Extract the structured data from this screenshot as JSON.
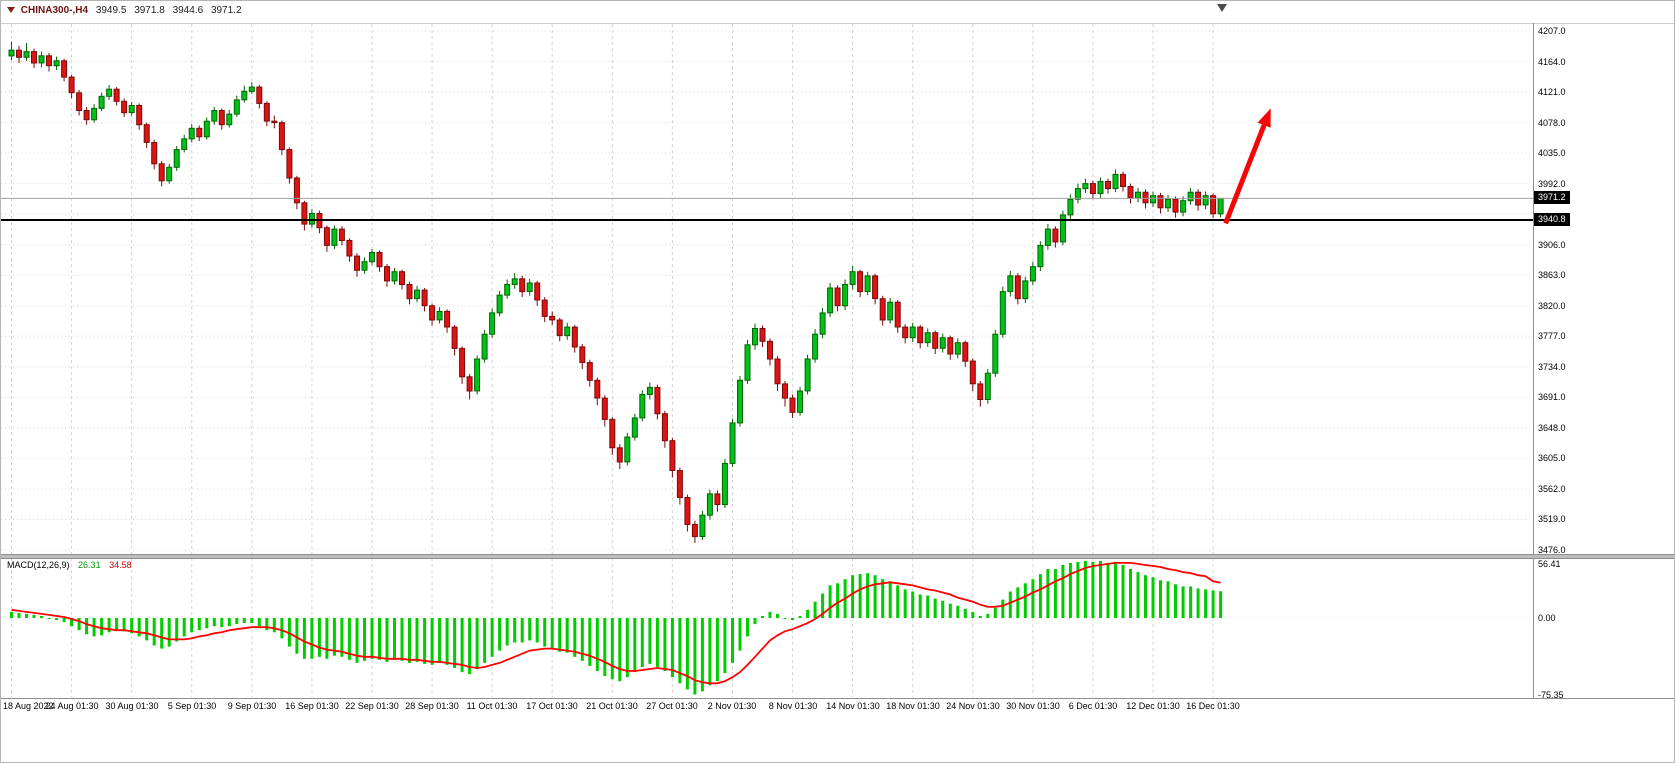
{
  "header": {
    "symbol": "CHINA300-,H4",
    "open": "3949.5",
    "high": "3971.8",
    "low": "3944.6",
    "close": "3971.2"
  },
  "price_tags": {
    "current": "3971.2",
    "hline": "3940.8"
  },
  "macd_panel": {
    "label": "MACD(12,26,9)",
    "main_value": "26.31",
    "signal_value": "34.58"
  },
  "colors": {
    "up_fill": "#00c11b",
    "up_stroke": "#006400",
    "down_fill": "#dc1414",
    "down_stroke": "#7a0a0a",
    "grid": "#d4d4d4",
    "bid_line": "#a0a0a0",
    "hline": "#000000",
    "arrow": "#f40606",
    "macd_hist": "#00cc00",
    "macd_signal": "#ff0000",
    "tag_bg": "#000000",
    "tag_text": "#ffffff"
  },
  "chart_data": {
    "type": "candlestick",
    "symbol": "CHINA300-",
    "timeframe": "H4",
    "title": "CHINA300-,H4 3949.5 3971.8 3944.6 3971.2",
    "current_price": 3971.2,
    "horizontal_line_price": 3940.8,
    "last_candle": {
      "open": 3949.5,
      "high": 3971.8,
      "low": 3944.6,
      "close": 3971.2
    },
    "trend_arrow": {
      "from_index": 162,
      "from_price": 3936,
      "to_index": 168,
      "to_price": 4098
    },
    "price_axis": {
      "max_price": 4207,
      "min_price": 3476,
      "step": 43,
      "labels": [
        "4207.0",
        "4164.0",
        "4121.0",
        "4078.0",
        "4035.0",
        "3992.0",
        "3906.0",
        "3863.0",
        "3820.0",
        "3777.0",
        "3734.0",
        "3691.0",
        "3648.0",
        "3605.0",
        "3562.0",
        "3519.0",
        "3476.0"
      ]
    },
    "time_axis": {
      "labels": [
        "18 Aug 2022",
        "24 Aug 01:30",
        "30 Aug 01:30",
        "5 Sep 01:30",
        "9 Sep 01:30",
        "16 Sep 01:30",
        "22 Sep 01:30",
        "28 Sep 01:30",
        "11 Oct 01:30",
        "17 Oct 01:30",
        "21 Oct 01:30",
        "27 Oct 01:30",
        "2 Nov 01:30",
        "8 Nov 01:30",
        "14 Nov 01:30",
        "18 Nov 01:30",
        "24 Nov 01:30",
        "30 Nov 01:30",
        "6 Dec 01:30",
        "12 Dec 01:30",
        "16 Dec 01:30"
      ]
    },
    "candles": [
      [
        4172,
        4192,
        4166,
        4180
      ],
      [
        4180,
        4186,
        4162,
        4170
      ],
      [
        4170,
        4190,
        4165,
        4178
      ],
      [
        4178,
        4182,
        4155,
        4162
      ],
      [
        4162,
        4178,
        4156,
        4172
      ],
      [
        4172,
        4176,
        4150,
        4158
      ],
      [
        4158,
        4171,
        4152,
        4165
      ],
      [
        4165,
        4168,
        4136,
        4142
      ],
      [
        4142,
        4145,
        4112,
        4120
      ],
      [
        4120,
        4124,
        4088,
        4095
      ],
      [
        4095,
        4100,
        4075,
        4082
      ],
      [
        4082,
        4104,
        4078,
        4098
      ],
      [
        4098,
        4120,
        4094,
        4115
      ],
      [
        4115,
        4131,
        4110,
        4125
      ],
      [
        4125,
        4128,
        4102,
        4108
      ],
      [
        4108,
        4112,
        4086,
        4092
      ],
      [
        4092,
        4107,
        4088,
        4102
      ],
      [
        4102,
        4105,
        4068,
        4075
      ],
      [
        4075,
        4078,
        4042,
        4050
      ],
      [
        4050,
        4054,
        4012,
        4020
      ],
      [
        4020,
        4024,
        3988,
        3996
      ],
      [
        3996,
        4020,
        3992,
        4015
      ],
      [
        4015,
        4045,
        4010,
        4040
      ],
      [
        4040,
        4061,
        4036,
        4055
      ],
      [
        4055,
        4076,
        4050,
        4070
      ],
      [
        4070,
        4074,
        4052,
        4058
      ],
      [
        4058,
        4085,
        4054,
        4080
      ],
      [
        4080,
        4100,
        4075,
        4095
      ],
      [
        4095,
        4098,
        4068,
        4075
      ],
      [
        4075,
        4096,
        4071,
        4090
      ],
      [
        4090,
        4116,
        4086,
        4110
      ],
      [
        4110,
        4130,
        4106,
        4122
      ],
      [
        4122,
        4135,
        4118,
        4128
      ],
      [
        4128,
        4131,
        4098,
        4105
      ],
      [
        4105,
        4108,
        4073,
        4080
      ],
      [
        4080,
        4088,
        4070,
        4078
      ],
      [
        4078,
        4081,
        4032,
        4040
      ],
      [
        4040,
        4043,
        3992,
        4000
      ],
      [
        4000,
        4003,
        3956,
        3965
      ],
      [
        3965,
        3968,
        3926,
        3935
      ],
      [
        3935,
        3956,
        3930,
        3950
      ],
      [
        3950,
        3954,
        3922,
        3930
      ],
      [
        3930,
        3933,
        3896,
        3905
      ],
      [
        3905,
        3933,
        3900,
        3928
      ],
      [
        3928,
        3932,
        3905,
        3912
      ],
      [
        3912,
        3915,
        3882,
        3890
      ],
      [
        3890,
        3894,
        3861,
        3870
      ],
      [
        3870,
        3888,
        3865,
        3882
      ],
      [
        3882,
        3900,
        3877,
        3895
      ],
      [
        3895,
        3898,
        3868,
        3875
      ],
      [
        3875,
        3879,
        3847,
        3855
      ],
      [
        3855,
        3873,
        3850,
        3868
      ],
      [
        3868,
        3871,
        3843,
        3850
      ],
      [
        3850,
        3854,
        3822,
        3830
      ],
      [
        3830,
        3848,
        3825,
        3842
      ],
      [
        3842,
        3845,
        3812,
        3820
      ],
      [
        3820,
        3823,
        3792,
        3800
      ],
      [
        3800,
        3818,
        3795,
        3812
      ],
      [
        3812,
        3815,
        3782,
        3790
      ],
      [
        3790,
        3793,
        3750,
        3760
      ],
      [
        3760,
        3763,
        3710,
        3720
      ],
      [
        3720,
        3724,
        3688,
        3700
      ],
      [
        3700,
        3750,
        3695,
        3745
      ],
      [
        3745,
        3786,
        3740,
        3780
      ],
      [
        3780,
        3816,
        3775,
        3810
      ],
      [
        3810,
        3841,
        3805,
        3835
      ],
      [
        3835,
        3857,
        3830,
        3850
      ],
      [
        3850,
        3866,
        3844,
        3858
      ],
      [
        3858,
        3862,
        3832,
        3840
      ],
      [
        3840,
        3858,
        3834,
        3852
      ],
      [
        3852,
        3855,
        3820,
        3828
      ],
      [
        3828,
        3832,
        3797,
        3805
      ],
      [
        3805,
        3812,
        3793,
        3800
      ],
      [
        3800,
        3803,
        3770,
        3778
      ],
      [
        3778,
        3796,
        3772,
        3790
      ],
      [
        3790,
        3793,
        3754,
        3762
      ],
      [
        3762,
        3766,
        3731,
        3740
      ],
      [
        3740,
        3744,
        3706,
        3715
      ],
      [
        3715,
        3719,
        3680,
        3690
      ],
      [
        3690,
        3694,
        3650,
        3660
      ],
      [
        3660,
        3663,
        3610,
        3620
      ],
      [
        3620,
        3625,
        3590,
        3600
      ],
      [
        3600,
        3641,
        3595,
        3635
      ],
      [
        3635,
        3668,
        3630,
        3662
      ],
      [
        3662,
        3701,
        3657,
        3695
      ],
      [
        3695,
        3712,
        3688,
        3705
      ],
      [
        3705,
        3709,
        3660,
        3668
      ],
      [
        3668,
        3672,
        3620,
        3630
      ],
      [
        3630,
        3634,
        3578,
        3588
      ],
      [
        3588,
        3592,
        3540,
        3550
      ],
      [
        3550,
        3554,
        3502,
        3512
      ],
      [
        3512,
        3517,
        3486,
        3495
      ],
      [
        3495,
        3531,
        3490,
        3525
      ],
      [
        3525,
        3561,
        3519,
        3555
      ],
      [
        3555,
        3560,
        3530,
        3540
      ],
      [
        3540,
        3604,
        3535,
        3598
      ],
      [
        3598,
        3661,
        3593,
        3655
      ],
      [
        3655,
        3721,
        3650,
        3715
      ],
      [
        3715,
        3772,
        3710,
        3765
      ],
      [
        3765,
        3795,
        3758,
        3788
      ],
      [
        3788,
        3792,
        3762,
        3770
      ],
      [
        3770,
        3774,
        3736,
        3745
      ],
      [
        3745,
        3749,
        3700,
        3710
      ],
      [
        3710,
        3714,
        3678,
        3690
      ],
      [
        3690,
        3695,
        3662,
        3670
      ],
      [
        3670,
        3706,
        3665,
        3700
      ],
      [
        3700,
        3751,
        3695,
        3745
      ],
      [
        3745,
        3787,
        3740,
        3780
      ],
      [
        3780,
        3817,
        3774,
        3810
      ],
      [
        3810,
        3852,
        3804,
        3845
      ],
      [
        3845,
        3849,
        3812,
        3820
      ],
      [
        3820,
        3857,
        3814,
        3850
      ],
      [
        3850,
        3876,
        3843,
        3868
      ],
      [
        3868,
        3871,
        3832,
        3840
      ],
      [
        3840,
        3868,
        3835,
        3862
      ],
      [
        3862,
        3865,
        3822,
        3830
      ],
      [
        3830,
        3834,
        3792,
        3800
      ],
      [
        3800,
        3831,
        3795,
        3825
      ],
      [
        3825,
        3828,
        3782,
        3790
      ],
      [
        3790,
        3794,
        3767,
        3775
      ],
      [
        3775,
        3796,
        3769,
        3790
      ],
      [
        3790,
        3793,
        3760,
        3768
      ],
      [
        3768,
        3788,
        3762,
        3782
      ],
      [
        3782,
        3785,
        3752,
        3760
      ],
      [
        3760,
        3781,
        3754,
        3775
      ],
      [
        3775,
        3778,
        3744,
        3752
      ],
      [
        3752,
        3774,
        3746,
        3768
      ],
      [
        3768,
        3771,
        3734,
        3742
      ],
      [
        3742,
        3746,
        3700,
        3710
      ],
      [
        3710,
        3714,
        3678,
        3688
      ],
      [
        3688,
        3731,
        3682,
        3725
      ],
      [
        3725,
        3786,
        3720,
        3780
      ],
      [
        3780,
        3847,
        3775,
        3840
      ],
      [
        3840,
        3869,
        3833,
        3862
      ],
      [
        3862,
        3866,
        3822,
        3830
      ],
      [
        3830,
        3861,
        3824,
        3855
      ],
      [
        3855,
        3882,
        3849,
        3875
      ],
      [
        3875,
        3911,
        3869,
        3905
      ],
      [
        3905,
        3935,
        3899,
        3928
      ],
      [
        3928,
        3932,
        3902,
        3910
      ],
      [
        3910,
        3954,
        3905,
        3948
      ],
      [
        3948,
        3977,
        3942,
        3970
      ],
      [
        3970,
        3992,
        3964,
        3985
      ],
      [
        3985,
        3999,
        3979,
        3992
      ],
      [
        3992,
        3996,
        3970,
        3978
      ],
      [
        3978,
        4001,
        3972,
        3995
      ],
      [
        3995,
        3999,
        3978,
        3985
      ],
      [
        3985,
        4012,
        3980,
        4005
      ],
      [
        4005,
        4009,
        3981,
        3988
      ],
      [
        3988,
        3992,
        3964,
        3972
      ],
      [
        3972,
        3986,
        3966,
        3980
      ],
      [
        3980,
        3984,
        3957,
        3965
      ],
      [
        3965,
        3981,
        3959,
        3975
      ],
      [
        3975,
        3979,
        3950,
        3958
      ],
      [
        3958,
        3976,
        3952,
        3970
      ],
      [
        3970,
        3974,
        3944,
        3952
      ],
      [
        3952,
        3974,
        3946,
        3968
      ],
      [
        3968,
        3986,
        3962,
        3980
      ],
      [
        3980,
        3984,
        3954,
        3962
      ],
      [
        3962,
        3981,
        3956,
        3975
      ],
      [
        3975,
        3978,
        3944,
        3949.5
      ],
      [
        3949.5,
        3971.8,
        3944.6,
        3971.2
      ]
    ],
    "macd": {
      "params": "12,26,9",
      "levels": [
        "56.41",
        "0.00",
        "-75.35"
      ],
      "histogram": [
        6,
        5,
        4,
        3,
        2,
        0,
        -2,
        -4,
        -8,
        -12,
        -16,
        -18,
        -17,
        -14,
        -12,
        -13,
        -15,
        -18,
        -22,
        -27,
        -30,
        -28,
        -23,
        -18,
        -14,
        -12,
        -10,
        -8,
        -9,
        -8,
        -6,
        -5,
        -5,
        -8,
        -12,
        -14,
        -20,
        -28,
        -35,
        -40,
        -40,
        -38,
        -40,
        -37,
        -38,
        -41,
        -44,
        -42,
        -40,
        -41,
        -43,
        -41,
        -42,
        -44,
        -43,
        -45,
        -46,
        -44,
        -46,
        -49,
        -53,
        -55,
        -50,
        -44,
        -38,
        -32,
        -27,
        -24,
        -24,
        -22,
        -24,
        -28,
        -30,
        -33,
        -34,
        -38,
        -42,
        -47,
        -52,
        -57,
        -60,
        -62,
        -58,
        -53,
        -48,
        -45,
        -48,
        -52,
        -58,
        -64,
        -70,
        -75,
        -72,
        -66,
        -62,
        -54,
        -44,
        -32,
        -18,
        -6,
        2,
        6,
        4,
        0,
        -2,
        2,
        8,
        16,
        24,
        32,
        34,
        38,
        42,
        43,
        44,
        42,
        38,
        36,
        32,
        28,
        26,
        23,
        22,
        19,
        17,
        14,
        12,
        9,
        6,
        2,
        4,
        10,
        18,
        26,
        30,
        34,
        38,
        43,
        48,
        48,
        52,
        54,
        55,
        56,
        55,
        56,
        54,
        55,
        52,
        48,
        45,
        42,
        40,
        37,
        36,
        33,
        31,
        31,
        29,
        28,
        27,
        26.31
      ],
      "signal_line": [
        8,
        7,
        6,
        5,
        4,
        3,
        2,
        1,
        -1,
        -3,
        -6,
        -8,
        -10,
        -11,
        -12,
        -12,
        -13,
        -14,
        -15,
        -17,
        -19,
        -21,
        -21,
        -21,
        -20,
        -18,
        -17,
        -15,
        -14,
        -12,
        -11,
        -10,
        -9,
        -9,
        -9,
        -10,
        -12,
        -15,
        -19,
        -23,
        -26,
        -29,
        -31,
        -32,
        -33,
        -35,
        -37,
        -38,
        -38,
        -39,
        -40,
        -40,
        -40,
        -41,
        -41,
        -42,
        -43,
        -43,
        -44,
        -45,
        -46,
        -48,
        -49,
        -48,
        -46,
        -44,
        -41,
        -38,
        -35,
        -32,
        -31,
        -30,
        -30,
        -31,
        -32,
        -33,
        -35,
        -37,
        -40,
        -43,
        -47,
        -50,
        -52,
        -52,
        -51,
        -50,
        -49,
        -50,
        -51,
        -54,
        -57,
        -61,
        -63,
        -64,
        -64,
        -62,
        -58,
        -53,
        -46,
        -38,
        -30,
        -22,
        -17,
        -13,
        -11,
        -8,
        -5,
        -1,
        4,
        10,
        15,
        19,
        24,
        28,
        31,
        33,
        34,
        35,
        34,
        33,
        32,
        30,
        28,
        27,
        25,
        23,
        20,
        18,
        16,
        13,
        11,
        11,
        12,
        15,
        18,
        21,
        25,
        28,
        32,
        36,
        39,
        43,
        46,
        49,
        51,
        52,
        53,
        54,
        54,
        54,
        53,
        52,
        51,
        50,
        48,
        47,
        45,
        44,
        42,
        41,
        36,
        34.58
      ]
    }
  }
}
